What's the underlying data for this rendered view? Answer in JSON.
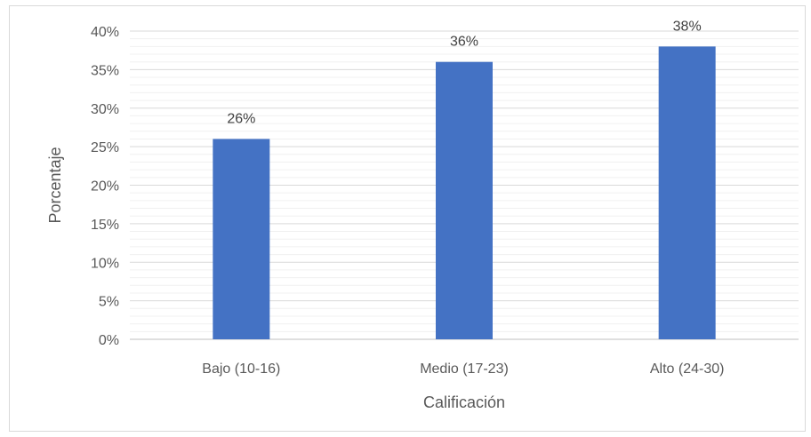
{
  "chart_data": {
    "type": "bar",
    "categories": [
      "Bajo (10-16)",
      "Medio (17-23)",
      "Alto (24-30)"
    ],
    "values": [
      26,
      36,
      38
    ],
    "data_labels": [
      "26%",
      "36%",
      "38%"
    ],
    "xlabel": "Calificación",
    "ylabel": "Porcentaje",
    "ylim": [
      0,
      40
    ],
    "y_ticks": [
      "0%",
      "5%",
      "10%",
      "15%",
      "20%",
      "25%",
      "30%",
      "35%",
      "40%"
    ],
    "grid": true,
    "legend": "none",
    "bar_color": "#4472c4"
  }
}
